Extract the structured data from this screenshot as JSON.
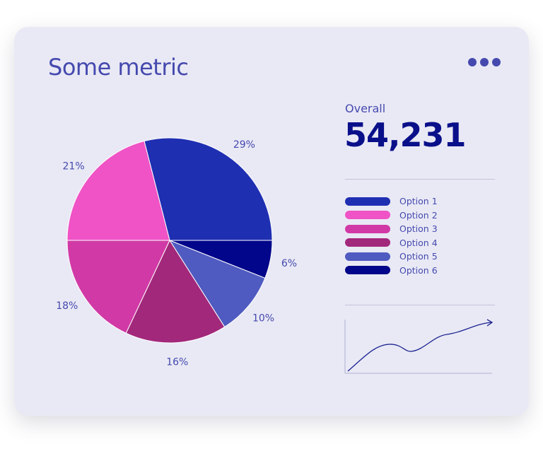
{
  "card": {
    "title": "Some metric",
    "menu_icon": "more-horizontal-icon"
  },
  "summary": {
    "label": "Overall",
    "value": "54,231"
  },
  "chart_data": {
    "type": "pie",
    "title": "Some metric",
    "categories": [
      "Option 1",
      "Option 6",
      "Option 5",
      "Option 4",
      "Option 3",
      "Option 2"
    ],
    "values": [
      29,
      6,
      10,
      16,
      18,
      21
    ],
    "labels": [
      "29%",
      "6%",
      "10%",
      "16%",
      "18%",
      "21%"
    ],
    "colors": [
      "#1f2fb2",
      "#02068a",
      "#4f5bc0",
      "#a2287b",
      "#d13aa6",
      "#ef53c5"
    ],
    "legend_position": "right"
  },
  "legend": [
    {
      "label": "Option 1",
      "color": "#1f2fb2"
    },
    {
      "label": "Option 2",
      "color": "#ef53c5"
    },
    {
      "label": "Option 3",
      "color": "#d13aa6"
    },
    {
      "label": "Option 4",
      "color": "#a2287b"
    },
    {
      "label": "Option 5",
      "color": "#4f5bc0"
    },
    {
      "label": "Option 6",
      "color": "#02068a"
    }
  ],
  "colors": {
    "accent": "#4549ae",
    "value": "#0a0f8a",
    "card_bg": "#e9e9f5"
  }
}
